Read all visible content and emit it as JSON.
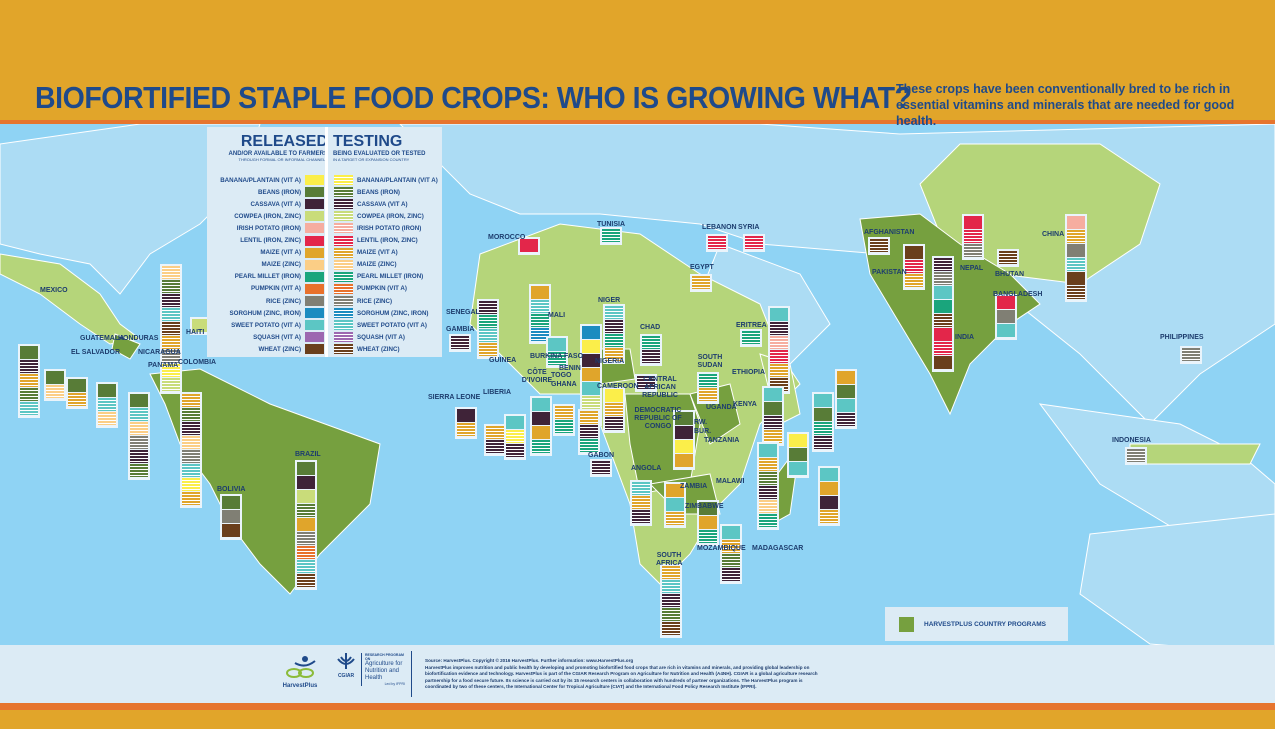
{
  "header": {
    "title": "BIOFORTIFIED STAPLE FOOD CROPS: WHO IS GROWING WHAT?",
    "subtitle": "These crops have been conventionally bred to be rich in essential vitamins and minerals that are needed for good health."
  },
  "legend": {
    "released": {
      "title": "RELEASED",
      "sub": "AND/OR AVAILABLE TO FARMERS",
      "sub2": "THROUGH FORMAL OR INFORMAL CHANNELS"
    },
    "testing": {
      "title": "TESTING",
      "sub": "BEING EVALUATED OR TESTED",
      "sub2": "IN A TARGET OR EXPANSION COUNTRY"
    },
    "crops": [
      {
        "key": "banana",
        "label": "BANANA/PLANTAIN (VIT A)",
        "color": "#fbee4a"
      },
      {
        "key": "beans",
        "label": "BEANS (IRON)",
        "color": "#587c37"
      },
      {
        "key": "cassava",
        "label": "CASSAVA (VIT A)",
        "color": "#3f2338"
      },
      {
        "key": "cowpea",
        "label": "COWPEA (IRON, ZINC)",
        "color": "#c9dc7a"
      },
      {
        "key": "potato",
        "label": "IRISH POTATO (IRON)",
        "color": "#f6ada0"
      },
      {
        "key": "lentil",
        "label": "LENTIL (IRON, ZINC)",
        "color": "#e3264a"
      },
      {
        "key": "maizeA",
        "label": "MAIZE (VIT A)",
        "color": "#e0a52b"
      },
      {
        "key": "maizeZ",
        "label": "MAIZE (ZINC)",
        "color": "#fbce86"
      },
      {
        "key": "millet",
        "label": "PEARL MILLET (IRON)",
        "color": "#1aa57c"
      },
      {
        "key": "pumpkin",
        "label": "PUMPKIN (VIT A)",
        "color": "#e8712c"
      },
      {
        "key": "rice",
        "label": "RICE (ZINC)",
        "color": "#807f74"
      },
      {
        "key": "sorghum",
        "label": "SORGHUM (ZINC, IRON)",
        "color": "#1c8cc0"
      },
      {
        "key": "sweetpotato",
        "label": "SWEET POTATO (VIT A)",
        "color": "#5cc6c4"
      },
      {
        "key": "squash",
        "label": "SQUASH (VIT A)",
        "color": "#9d67b0"
      },
      {
        "key": "wheat",
        "label": "WHEAT (ZINC)",
        "color": "#6a3f1c"
      }
    ],
    "program_label": "HARVESTPLUS COUNTRY PROGRAMS",
    "program_color": "#76a03f"
  },
  "countries": [
    "MEXICO",
    "GUATEMALA",
    "HONDURAS",
    "EL SALVADOR",
    "NICARAGUA",
    "PANAMA",
    "HAITI",
    "COLOMBIA",
    "BOLIVIA",
    "BRAZIL",
    "MOROCCO",
    "TUNISIA",
    "LEBANON",
    "SYRIA",
    "EGYPT",
    "SENEGAL",
    "GAMBIA",
    "MALI",
    "NIGER",
    "CHAD",
    "GUINEA",
    "BURKINA FASO",
    "BENIN",
    "TOGO",
    "NIGERIA",
    "CÔTE D'IVOIRE",
    "GHANA",
    "SIERRA LEONE",
    "LIBERIA",
    "CAMEROON",
    "CENTRAL AFRICAN REPUBLIC",
    "SOUTH SUDAN",
    "ERITREA",
    "ETHIOPIA",
    "DEMOCRATIC REPUBLIC OF CONGO",
    "UGANDA",
    "KENYA",
    "RW.",
    "BUR.",
    "TANZANIA",
    "GABON",
    "ANGOLA",
    "ZAMBIA",
    "MALAWI",
    "ZIMBABWE",
    "MOZAMBIQUE",
    "MADAGASCAR",
    "SOUTH AFRICA",
    "AFGHANISTAN",
    "PAKISTAN",
    "NEPAL",
    "BHUTAN",
    "BANGLADESH",
    "INDIA",
    "CHINA",
    "PHILIPPINES",
    "INDONESIA"
  ],
  "stacks": [
    {
      "country": "MEXICO",
      "crops": [
        "maizeZ-t",
        "beans-t",
        "cassava-t",
        "sweetpotato-t",
        "wheat-t",
        "maizeA-t",
        "rice-t",
        "banana-t",
        "cowpea-t"
      ]
    },
    {
      "country": "GUATEMALA",
      "crops": [
        "beans-r",
        "cassava-t",
        "maizeA-t",
        "beans-t",
        "sweetpotato-t"
      ]
    },
    {
      "country": "EL SALVADOR",
      "crops": [
        "beans-r",
        "maizeZ-t"
      ]
    },
    {
      "country": "HONDURAS",
      "crops": [
        "beans-r",
        "maizeA-t"
      ]
    },
    {
      "country": "NICARAGUA",
      "crops": [
        "beans-r",
        "sweetpotato-t",
        "maizeZ-t"
      ]
    },
    {
      "country": "PANAMA",
      "crops": [
        "beans-r",
        "sweetpotato-t",
        "maizeZ-t",
        "rice-t",
        "cassava-t",
        "beans-t"
      ]
    },
    {
      "country": "HAITI",
      "crops": [
        "cowpea-r"
      ]
    },
    {
      "country": "COLOMBIA",
      "crops": [
        "maizeA-t",
        "beans-t",
        "cassava-t",
        "maizeZ-t",
        "rice-t",
        "sweetpotato-t",
        "banana-t",
        "maizeA-t"
      ]
    },
    {
      "country": "BOLIVIA",
      "crops": [
        "beans-r",
        "rice-r",
        "wheat-r"
      ]
    },
    {
      "country": "BRAZIL",
      "crops": [
        "beans-r",
        "cassava-r",
        "cowpea-r",
        "beans-t",
        "maizeA-r",
        "rice-t",
        "pumpkin-t",
        "sweetpotato-t",
        "wheat-t"
      ]
    },
    {
      "country": "MOROCCO",
      "crops": [
        "lentil-r"
      ]
    },
    {
      "country": "TUNISIA",
      "crops": [
        "millet-t"
      ]
    },
    {
      "country": "LEBANON",
      "crops": [
        "lentil-t"
      ]
    },
    {
      "country": "SYRIA",
      "crops": [
        "lentil-t"
      ]
    },
    {
      "country": "EGYPT",
      "crops": [
        "maizeA-t"
      ]
    },
    {
      "country": "SENEGAL",
      "crops": [
        "cassava-t",
        "millet-t",
        "sweetpotato-t",
        "maizeA-t"
      ]
    },
    {
      "country": "GAMBIA",
      "crops": [
        "cassava-t"
      ]
    },
    {
      "country": "MALI",
      "crops": [
        "maizeA-r",
        "sweetpotato-t",
        "millet-t",
        "sorghum-t"
      ]
    },
    {
      "country": "NIGER",
      "crops": [
        "sweetpotato-t",
        "cassava-t",
        "millet-t",
        "maizeA-t"
      ]
    },
    {
      "country": "NIGERIA",
      "crops": [
        "sorghum-r",
        "banana-r",
        "cassava-r",
        "maizeA-r",
        "sweetpotato-r",
        "cowpea-t",
        "millet-t"
      ]
    },
    {
      "country": "CHAD",
      "crops": [
        "millet-t",
        "cassava-t"
      ]
    },
    {
      "country": "BURKINA FASO",
      "crops": [
        "sweetpotato-r",
        "millet-t"
      ]
    },
    {
      "country": "SIERRA LEONE",
      "crops": [
        "cassava-r",
        "maizeA-t"
      ]
    },
    {
      "country": "LIBERIA",
      "crops": [
        "maizeA-t",
        "cassava-t"
      ]
    },
    {
      "country": "CÔTE D'IVOIRE",
      "crops": [
        "sweetpotato-r",
        "banana-t",
        "cassava-t"
      ]
    },
    {
      "country": "GHANA",
      "crops": [
        "sweetpotato-r",
        "cassava-r",
        "maizeA-r",
        "millet-t"
      ]
    },
    {
      "country": "TOGO",
      "crops": [
        "maizeA-t",
        "millet-t"
      ]
    },
    {
      "country": "BENIN",
      "crops": [
        "maizeA-t",
        "cassava-t",
        "millet-t"
      ]
    },
    {
      "country": "CAMEROON",
      "crops": [
        "banana-r",
        "maizeA-t",
        "cassava-t"
      ]
    },
    {
      "country": "CENTRAL AFRICAN REPUBLIC",
      "crops": [
        "cassava-t"
      ]
    },
    {
      "country": "GABON",
      "crops": [
        "cassava-t"
      ]
    },
    {
      "country": "SOUTH SUDAN",
      "crops": [
        "millet-t",
        "maizeA-t"
      ]
    },
    {
      "country": "ERITREA",
      "crops": [
        "millet-t"
      ]
    },
    {
      "country": "ETHIOPIA",
      "crops": [
        "sweetpotato-r",
        "cassava-t",
        "potato-t",
        "lentil-t",
        "maizeA-t",
        "wheat-t"
      ]
    },
    {
      "country": "DEMOCRATIC REPUBLIC OF CONGO",
      "crops": [
        "beans-r",
        "cassava-r",
        "banana-r",
        "maizeA-r"
      ]
    },
    {
      "country": "UGANDA",
      "crops": [
        "sweetpotato-r",
        "beans-r",
        "cassava-t",
        "maizeA-t"
      ]
    },
    {
      "country": "KENYA",
      "crops": [
        "sweetpotato-r",
        "beans-r",
        "millet-t",
        "cassava-t"
      ]
    },
    {
      "country": "RW.",
      "crops": [
        "banana-r",
        "beans-r",
        "sweetpotato-r"
      ]
    },
    {
      "country": "BUR.",
      "crops": [
        "maizeA-r",
        "beans-r",
        "sweetpotato-r",
        "cassava-t"
      ]
    },
    {
      "country": "TANZANIA",
      "crops": [
        "sweetpotato-r",
        "maizeA-t",
        "beans-t",
        "cassava-t",
        "maizeZ-t",
        "millet-t"
      ]
    },
    {
      "country": "MADAGASCAR",
      "crops": [
        "sweetpotato-r",
        "maizeA-r",
        "cassava-r",
        "maizeA-t"
      ]
    },
    {
      "country": "ANGOLA",
      "crops": [
        "sweetpotato-t",
        "maizeA-t",
        "cassava-t"
      ]
    },
    {
      "country": "ZAMBIA",
      "crops": [
        "maizeA-r",
        "sweetpotato-r",
        "maizeA-t"
      ]
    },
    {
      "country": "ZIMBABWE",
      "crops": [
        "beans-r",
        "maizeA-r",
        "millet-t"
      ]
    },
    {
      "country": "MOZAMBIQUE",
      "crops": [
        "sweetpotato-r",
        "maizeA-t",
        "beans-t",
        "cassava-t"
      ]
    },
    {
      "country": "SOUTH AFRICA",
      "crops": [
        "maizeA-t",
        "sweetpotato-t",
        "cassava-t",
        "beans-t",
        "wheat-t"
      ]
    },
    {
      "country": "AFGHANISTAN",
      "crops": [
        "wheat-t"
      ]
    },
    {
      "country": "PAKISTAN",
      "crops": [
        "wheat-r",
        "lentil-t",
        "maizeA-t"
      ]
    },
    {
      "country": "NEPAL",
      "crops": [
        "lentil-r",
        "lentil-t",
        "rice-t"
      ]
    },
    {
      "country": "BHUTAN",
      "crops": [
        "wheat-t"
      ]
    },
    {
      "country": "BANGLADESH",
      "crops": [
        "lentil-r",
        "rice-r",
        "sweetpotato-r"
      ]
    },
    {
      "country": "INDIA",
      "crops": [
        "cassava-t",
        "rice-t",
        "sweetpotato-r",
        "millet-r",
        "wheat-t",
        "lentil-r",
        "lentil-t",
        "wheat-r"
      ]
    },
    {
      "country": "CHINA",
      "crops": [
        "potato-r",
        "maizeA-t",
        "rice-r",
        "sweetpotato-t",
        "wheat-r",
        "wheat-t"
      ]
    },
    {
      "country": "PHILIPPINES",
      "crops": [
        "rice-t"
      ]
    },
    {
      "country": "INDONESIA",
      "crops": [
        "rice-t"
      ]
    }
  ],
  "footer": {
    "source": "Source: HarvestPlus. Copyright © 2016 HarvestPlus. Further information: www.HarvestPlus.org",
    "body": "HarvestPlus improves nutrition and public health by developing and promoting biofortified food crops that are rich in vitamins and minerals, and providing global leadership on biofortification evidence and technology. HarvestPlus is part of the CGIAR Research Program on Agriculture for Nutrition and Health (A4NH). CGIAR is a global agriculture research partnership for a food secure future. Its science is carried out by its 15 research centers in collaboration with hundreds of partner organizations. The HarvestPlus program is coordinated by two of these centers, the International Center for Tropical Agriculture (CIAT) and the International Food Policy Research Institute (IFPRI).",
    "hp_logo": "HarvestPlus",
    "cgiar_logo": "CGIAR",
    "a4nh_small": "RESEARCH PROGRAM ON",
    "a4nh": "Agriculture for Nutrition and Health",
    "a4nh_led": "Led by IFPRI"
  }
}
